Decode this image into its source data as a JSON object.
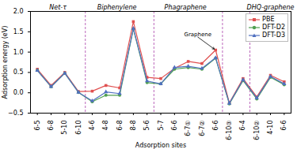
{
  "chart_data": {
    "type": "line",
    "xlabel": "Adsorption sites",
    "ylabel": "Adsorption energy (eV)",
    "categories": [
      "6-5",
      "6-8",
      "5-10",
      "6-10",
      "4-6",
      "4-8",
      "6-8",
      "8-8",
      "5-6",
      "5-7",
      "6-6",
      "6-7①",
      "6-7②",
      "6-6",
      "6-10③",
      "6-4",
      "6-10②",
      "4-10",
      "6-6"
    ],
    "series": [
      {
        "name": "PBE",
        "color": "#e05050",
        "marker": "square",
        "values": [
          0.58,
          0.18,
          0.5,
          0.03,
          0.04,
          0.18,
          0.12,
          1.75,
          0.38,
          0.35,
          0.6,
          0.77,
          0.72,
          1.05,
          -0.25,
          0.35,
          -0.1,
          0.43,
          0.27
        ]
      },
      {
        "name": "DFT-D2",
        "color": "#50a050",
        "marker": "circle",
        "values": [
          0.55,
          0.15,
          0.48,
          0.01,
          -0.22,
          -0.06,
          -0.06,
          1.57,
          0.25,
          0.22,
          0.58,
          0.62,
          0.58,
          0.85,
          -0.27,
          0.3,
          -0.15,
          0.38,
          0.2
        ]
      },
      {
        "name": "DFT-D3",
        "color": "#5070c0",
        "marker": "triangle",
        "values": [
          0.55,
          0.15,
          0.48,
          0.01,
          -0.2,
          0.02,
          -0.02,
          1.58,
          0.29,
          0.22,
          0.62,
          0.65,
          0.6,
          0.86,
          -0.26,
          0.32,
          -0.13,
          0.4,
          0.22
        ]
      }
    ],
    "vlines": [
      3.5,
      8.5,
      13.5,
      15.5
    ],
    "vline_color": "#bb66bb",
    "annotations": [
      {
        "text": "Net-τ",
        "x": 1.5,
        "y": 2.0
      },
      {
        "text": "Biphenylene",
        "x": 5.8,
        "y": 2.0
      },
      {
        "text": "Phagraphene",
        "x": 10.8,
        "y": 2.0
      },
      {
        "text": "DHQ-graphene",
        "x": 17.0,
        "y": 2.0
      },
      {
        "text": "Graphene",
        "x": 11.7,
        "y": 1.37,
        "arrow_x": 13,
        "arrow_y": 1.05
      }
    ],
    "ylim": [
      -0.5,
      2.0
    ],
    "yticks": [
      {
        "value": -0.5,
        "label": "−0.5"
      },
      {
        "value": 0.0,
        "label": "0.0"
      },
      0.5,
      {
        "value": 1.0,
        "label": "1.0"
      },
      1.5,
      {
        "value": 2.0,
        "label": "2.0"
      }
    ],
    "grid": false,
    "legend": "upper right"
  }
}
